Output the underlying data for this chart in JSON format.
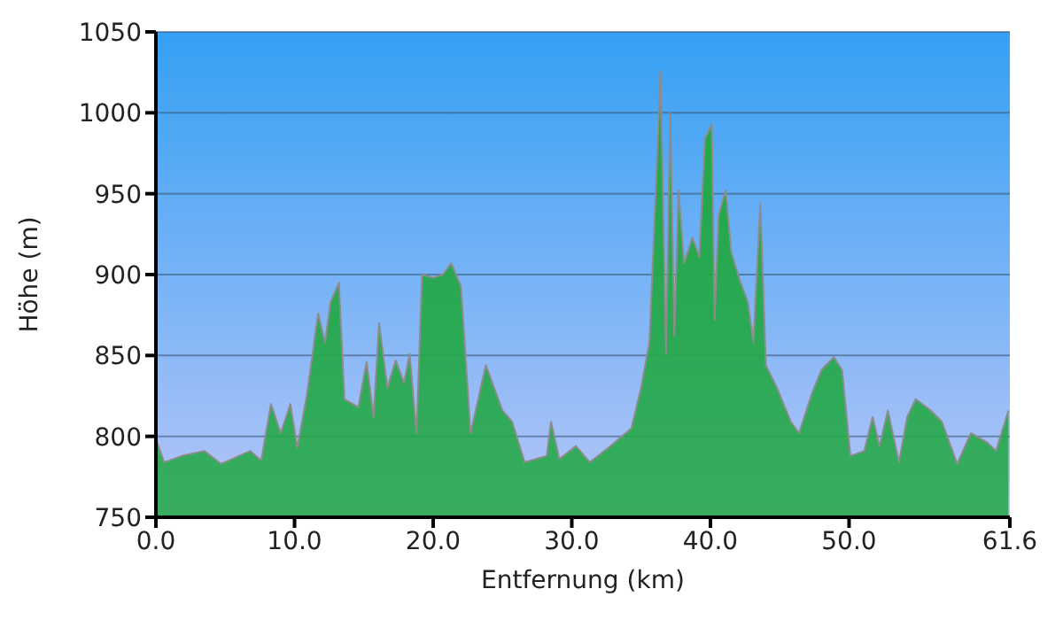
{
  "chart_data": {
    "type": "area",
    "xlabel": "Entfernung (km)",
    "ylabel": "Höhe (m)",
    "xlim": [
      0,
      61.6
    ],
    "ylim": [
      750,
      1050
    ],
    "xticks": [
      {
        "value": 0,
        "label": "0.0"
      },
      {
        "value": 10,
        "label": "10.0"
      },
      {
        "value": 20,
        "label": "20.0"
      },
      {
        "value": 30,
        "label": "30.0"
      },
      {
        "value": 40,
        "label": "40.0"
      },
      {
        "value": 50,
        "label": "50.0"
      },
      61.6
    ],
    "yticks": [
      750,
      800,
      850,
      900,
      950,
      1000,
      1050
    ],
    "grid": "y",
    "series": [
      {
        "color": "#22a845",
        "x": [
          0.1,
          0.6,
          1.9,
          3.5,
          4.7,
          6.8,
          7.6,
          8.3,
          9.0,
          9.7,
          10.2,
          10.9,
          11.7,
          12.2,
          12.6,
          13.2,
          13.6,
          14.6,
          15.2,
          15.7,
          16.1,
          16.7,
          17.3,
          17.9,
          18.3,
          18.8,
          19.2,
          20.0,
          20.7,
          21.3,
          22.0,
          22.7,
          23.8,
          24.4,
          25.0,
          25.7,
          26.6,
          28.2,
          28.5,
          29.1,
          30.3,
          31.3,
          32.8,
          34.3,
          35.0,
          35.6,
          36.1,
          36.4,
          36.8,
          37.1,
          37.4,
          37.7,
          38.1,
          38.7,
          39.2,
          39.6,
          40.1,
          40.3,
          40.6,
          41.1,
          41.5,
          42.1,
          42.7,
          43.1,
          43.6,
          44.0,
          44.8,
          45.8,
          46.4,
          47.3,
          48.0,
          48.9,
          49.5,
          50.1,
          51.1,
          51.7,
          52.2,
          52.8,
          53.6,
          54.2,
          54.8,
          55.9,
          56.7,
          57.8,
          58.8,
          60.0,
          60.6,
          61.5
        ],
        "values": [
          796,
          784,
          788,
          791,
          783,
          791,
          785,
          820,
          802,
          820,
          793,
          826,
          876,
          858,
          883,
          895,
          823,
          818,
          846,
          812,
          870,
          830,
          847,
          833,
          851,
          802,
          900,
          898,
          900,
          907,
          893,
          802,
          844,
          830,
          816,
          809,
          784,
          788,
          809,
          786,
          794,
          784,
          794,
          805,
          830,
          858,
          960,
          1026,
          851,
          1000,
          862,
          952,
          907,
          923,
          911,
          984,
          993,
          872,
          937,
          952,
          914,
          897,
          883,
          858,
          944,
          844,
          830,
          809,
          802,
          826,
          841,
          849,
          841,
          788,
          791,
          812,
          794,
          816,
          784,
          812,
          823,
          816,
          809,
          783,
          802,
          796,
          791,
          816
        ]
      }
    ]
  }
}
